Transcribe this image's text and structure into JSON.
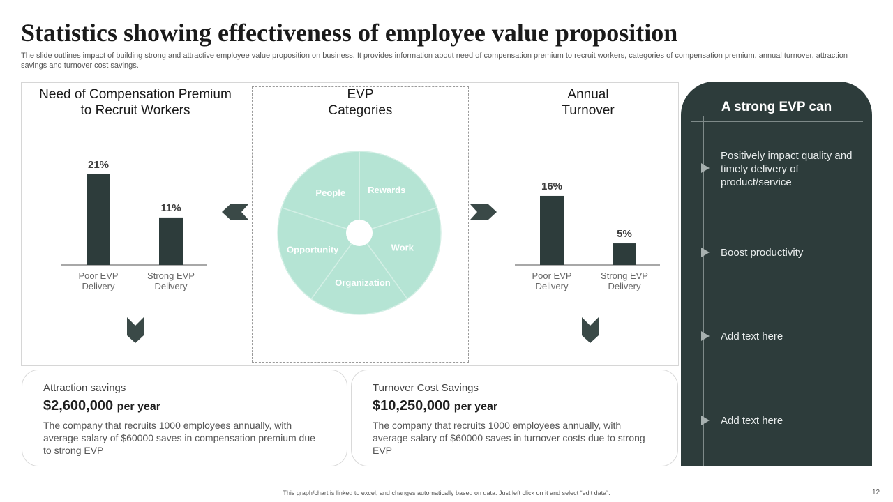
{
  "title": "Statistics showing effectiveness of employee value proposition",
  "subtitle": "The slide outlines impact of building strong and attractive employee value proposition on business. It provides information about need of compensation premium to recruit workers, categories of compensation premium, annual turnover, attraction savings and turnover cost savings.",
  "sections": {
    "compensation": {
      "line1": "Need of Compensation Premium",
      "line2": "to Recruit Workers"
    },
    "evp": {
      "line1": "EVP",
      "line2": "Categories"
    },
    "turnover": {
      "line1": "Annual",
      "line2": "Turnover"
    }
  },
  "chart_data": [
    {
      "type": "bar",
      "categories": [
        [
          "Poor EVP",
          "Delivery"
        ],
        [
          "Strong EVP",
          "Delivery"
        ]
      ],
      "values": [
        21,
        11
      ],
      "data_labels": [
        "21%",
        "11%"
      ],
      "ylim": [
        0,
        21
      ],
      "color": "#2d3c3b"
    },
    {
      "type": "pie",
      "categories": [
        "Rewards",
        "Work",
        "Organization",
        "Opportunity",
        "People"
      ],
      "values": [
        1,
        1,
        1,
        1,
        1
      ],
      "color": "#b5e4d4"
    },
    {
      "type": "bar",
      "categories": [
        [
          "Poor EVP",
          "Delivery"
        ],
        [
          "Strong EVP",
          "Delivery"
        ]
      ],
      "values": [
        16,
        5
      ],
      "data_labels": [
        "16%",
        "5%"
      ],
      "ylim": [
        0,
        21
      ],
      "color": "#2d3c3b"
    }
  ],
  "cards": {
    "attraction": {
      "heading": "Attraction savings",
      "amount": "$2,600,000",
      "per": "per year",
      "description": "The company that recruits 1000 employees annually, with average salary of $60000 saves in compensation premium due to strong EVP"
    },
    "turnover": {
      "heading": "Turnover Cost Savings",
      "amount": "$10,250,000",
      "per": "per year",
      "description": "The company that recruits 1000 employees annually, with average salary of $60000 saves in turnover costs due to strong EVP"
    }
  },
  "side_panel": {
    "title": "A strong EVP can",
    "items": [
      "Positively impact quality and timely delivery of product/service",
      "Boost productivity",
      "Add text here",
      "Add text here"
    ]
  },
  "footer": {
    "note": "This graph/chart is linked to excel, and changes automatically based on data. Just left click on it and select “edit data”.",
    "page_number": "12"
  },
  "colors": {
    "dark_teal": "#2d3c3b",
    "mint": "#b5e4d4",
    "panel_text": "#e8ecec"
  },
  "icons": {
    "left_arrow": "chevron-left-icon",
    "right_arrow": "chevron-right-icon",
    "down_arrow": "chevron-down-icon",
    "list_marker": "triangle-right-icon"
  }
}
